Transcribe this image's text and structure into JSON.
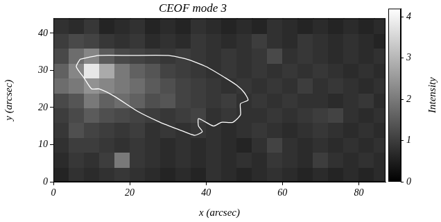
{
  "chart_data": {
    "type": "heatmap",
    "title": "CEOF mode 3",
    "x_label": "x (arcsec)",
    "y_label": "y (arcsec)",
    "xlim": [
      0,
      87
    ],
    "ylim": [
      0,
      44
    ],
    "xticks": [
      0,
      20,
      40,
      60,
      80
    ],
    "yticks": [
      0,
      10,
      20,
      30,
      40
    ],
    "grid": false,
    "x": [
      2,
      6,
      10,
      14,
      18,
      22,
      26,
      30,
      34,
      38,
      42,
      46,
      50,
      54,
      58,
      62,
      66,
      70,
      74,
      78,
      82,
      86
    ],
    "y": [
      2,
      6,
      10,
      14,
      18,
      22,
      26,
      30,
      34,
      38,
      42
    ],
    "z": [
      [
        0.6,
        0.8,
        0.7,
        0.8,
        0.9,
        0.8,
        0.7,
        0.6,
        0.7,
        0.6,
        0.8,
        0.7,
        0.6,
        0.7,
        0.8,
        0.7,
        0.6,
        0.7,
        0.6,
        0.7,
        0.6,
        0.7
      ],
      [
        0.7,
        0.9,
        0.8,
        1.0,
        2.0,
        0.9,
        0.8,
        0.7,
        0.8,
        0.7,
        0.8,
        0.7,
        0.8,
        0.7,
        0.9,
        0.8,
        0.7,
        1.0,
        0.8,
        0.7,
        0.8,
        0.7
      ],
      [
        0.8,
        1.0,
        1.0,
        0.9,
        0.8,
        0.9,
        0.8,
        0.7,
        0.8,
        0.7,
        0.8,
        0.7,
        0.6,
        0.8,
        1.1,
        0.8,
        0.7,
        0.8,
        0.7,
        0.8,
        0.7,
        0.8
      ],
      [
        0.9,
        1.3,
        1.1,
        1.0,
        0.9,
        1.0,
        0.8,
        0.9,
        0.8,
        0.9,
        0.8,
        0.7,
        0.8,
        0.9,
        0.8,
        0.7,
        0.8,
        0.9,
        0.8,
        0.7,
        0.8,
        0.7
      ],
      [
        1.0,
        1.2,
        1.5,
        1.3,
        1.2,
        1.1,
        1.0,
        0.9,
        1.0,
        1.1,
        0.8,
        0.9,
        0.8,
        0.8,
        0.9,
        0.8,
        0.9,
        1.0,
        1.1,
        0.8,
        0.7,
        0.8
      ],
      [
        1.2,
        1.4,
        2.0,
        1.6,
        1.8,
        1.6,
        1.3,
        1.4,
        1.1,
        1.0,
        0.9,
        1.0,
        0.8,
        0.9,
        0.8,
        0.9,
        0.8,
        0.8,
        0.7,
        0.8,
        0.9,
        0.7
      ],
      [
        1.8,
        2.0,
        2.4,
        2.2,
        2.0,
        1.8,
        1.5,
        1.3,
        1.1,
        1.0,
        0.9,
        0.8,
        0.9,
        0.8,
        0.9,
        0.8,
        1.0,
        0.8,
        0.9,
        0.8,
        0.7,
        0.8
      ],
      [
        1.6,
        2.2,
        3.8,
        2.8,
        2.0,
        1.6,
        1.4,
        1.1,
        1.0,
        0.9,
        0.8,
        0.9,
        0.8,
        0.9,
        0.8,
        0.9,
        0.8,
        0.9,
        0.8,
        0.7,
        0.8,
        0.7
      ],
      [
        1.2,
        1.8,
        2.2,
        1.5,
        1.2,
        1.1,
        1.0,
        0.9,
        1.0,
        0.9,
        0.8,
        0.9,
        0.8,
        0.9,
        1.2,
        0.8,
        0.9,
        0.8,
        0.7,
        0.8,
        0.7,
        0.8
      ],
      [
        1.0,
        1.2,
        1.1,
        0.9,
        0.8,
        0.9,
        0.7,
        0.8,
        0.7,
        0.9,
        0.8,
        0.7,
        0.8,
        1.0,
        0.8,
        0.7,
        0.9,
        0.8,
        0.7,
        0.8,
        0.7,
        0.6
      ],
      [
        0.8,
        0.7,
        0.9,
        0.6,
        0.7,
        0.8,
        0.6,
        0.7,
        0.6,
        0.8,
        0.7,
        0.6,
        0.7,
        0.6,
        0.8,
        0.7,
        0.6,
        0.7,
        0.6,
        0.7,
        0.6,
        0.7
      ]
    ],
    "contour": {
      "color": "#ffffff",
      "x": [
        7,
        12,
        20,
        30,
        35,
        40,
        45,
        48,
        50,
        51,
        49,
        49,
        47,
        44,
        42,
        40,
        38,
        38,
        39,
        37,
        33,
        28,
        22,
        16,
        12,
        10,
        8,
        6,
        7
      ],
      "y": [
        33,
        34,
        34,
        34,
        33,
        31,
        28,
        26,
        24,
        22,
        21,
        18,
        16,
        16,
        15,
        16,
        17,
        15,
        13.5,
        12.5,
        14,
        16,
        19,
        23,
        25,
        25,
        28,
        31,
        33
      ]
    },
    "colorbar": {
      "label": "Intensity",
      "range": [
        0,
        4.2
      ],
      "ticks": [
        0,
        1,
        2,
        3,
        4
      ]
    }
  }
}
